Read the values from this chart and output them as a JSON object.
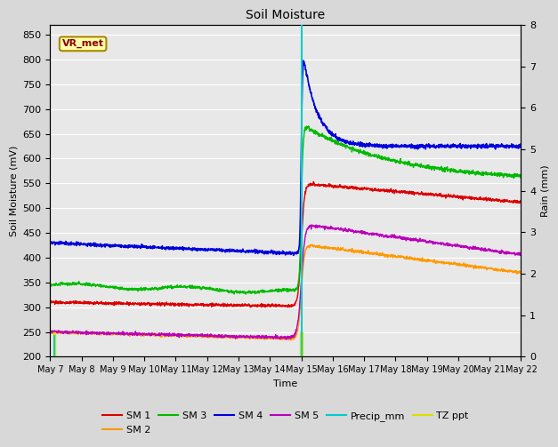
{
  "title": "Soil Moisture",
  "xlabel": "Time",
  "ylabel_left": "Soil Moisture (mV)",
  "ylabel_right": "Rain (mm)",
  "ylim_left": [
    200,
    870
  ],
  "ylim_right": [
    0.0,
    8.0
  ],
  "x_tick_labels": [
    "May 7",
    "May 8",
    "May 9",
    "May 10",
    "May 11",
    "May 12",
    "May 13",
    "May 14",
    "May 15",
    "May 16",
    "May 17",
    "May 18",
    "May 19",
    "May 20",
    "May 21",
    "May 22"
  ],
  "annotation_label": "VR_met",
  "bg_color": "#d8d8d8",
  "plot_bg_color": "#e8e8e8",
  "series": {
    "SM1": {
      "color": "#dd0000",
      "label": "SM 1"
    },
    "SM2": {
      "color": "#ff9900",
      "label": "SM 2"
    },
    "SM3": {
      "color": "#00bb00",
      "label": "SM 3"
    },
    "SM4": {
      "color": "#0000dd",
      "label": "SM 4"
    },
    "SM5": {
      "color": "#bb00bb",
      "label": "SM 5"
    },
    "Precip": {
      "color": "#00cccc",
      "label": "Precip_mm"
    },
    "TZ": {
      "color": "#dddd00",
      "label": "TZ ppt"
    }
  }
}
